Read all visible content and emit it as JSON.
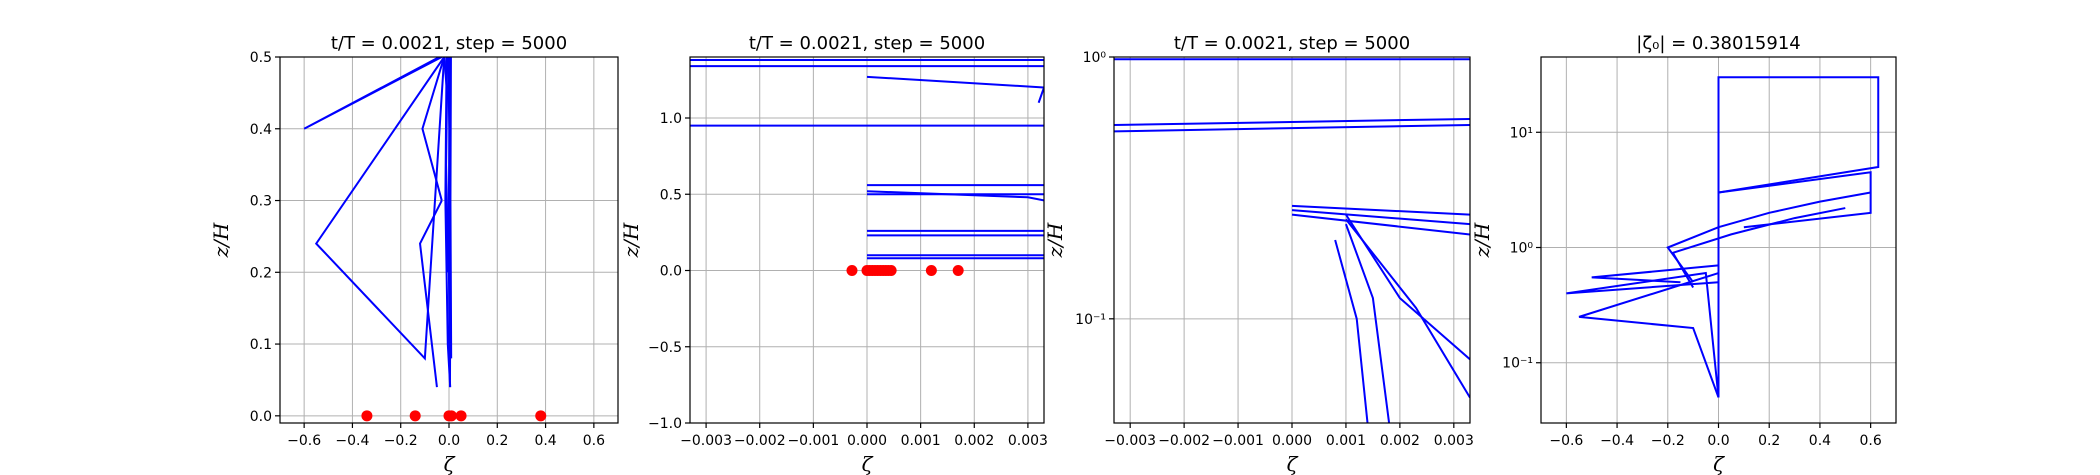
{
  "chart_data": [
    {
      "type": "line",
      "title": "t/T = 0.0021, step = 5000",
      "xlabel": "ζ",
      "ylabel": "z/H",
      "xlim": [
        -0.7,
        0.7
      ],
      "ylim": [
        -0.01,
        0.5
      ],
      "xscale": "linear",
      "yscale": "linear",
      "xticks": [
        -0.6,
        -0.4,
        -0.2,
        0.0,
        0.2,
        0.4,
        0.6
      ],
      "xtick_labels": [
        "−0.6",
        "−0.4",
        "−0.2",
        "0.0",
        "0.2",
        "0.4",
        "0.6"
      ],
      "yticks": [
        0.0,
        0.1,
        0.2,
        0.3,
        0.4,
        0.5
      ],
      "ytick_labels": [
        "0.0",
        "0.1",
        "0.2",
        "0.3",
        "0.4",
        "0.5"
      ],
      "grid": true,
      "series": [
        {
          "x": [
            -0.04,
            -0.6,
            -0.03
          ],
          "y": [
            0.5,
            0.4,
            0.5
          ]
        },
        {
          "x": [
            -0.02,
            -0.55,
            -0.1,
            -0.02
          ],
          "y": [
            0.5,
            0.24,
            0.08,
            0.5
          ]
        },
        {
          "x": [
            -0.02,
            -0.11,
            -0.03
          ],
          "y": [
            0.5,
            0.4,
            0.3
          ]
        },
        {
          "x": [
            -0.03,
            -0.12,
            -0.05
          ],
          "y": [
            0.3,
            0.24,
            0.04
          ]
        },
        {
          "x": [
            -0.01,
            -0.015,
            -0.005,
            0.005
          ],
          "y": [
            0.5,
            0.3,
            0.1,
            0.04
          ]
        },
        {
          "x": [
            0.0,
            0.002,
            0.001,
            0.004
          ],
          "y": [
            0.5,
            0.3,
            0.15,
            0.04
          ]
        },
        {
          "x": [
            0.005,
            0.003,
            0.006,
            0.004
          ],
          "y": [
            0.5,
            0.35,
            0.2,
            0.05
          ]
        },
        {
          "x": [
            -0.005,
            0.002,
            -0.002,
            0.003
          ],
          "y": [
            0.5,
            0.4,
            0.25,
            0.1
          ]
        },
        {
          "x": [
            0.008,
            0.006,
            0.009
          ],
          "y": [
            0.5,
            0.3,
            0.08
          ]
        },
        {
          "x": [
            -0.02,
            -0.008,
            -0.012,
            -0.003
          ],
          "y": [
            0.5,
            0.45,
            0.35,
            0.2
          ]
        }
      ],
      "points": {
        "x": [
          -0.34,
          -0.14,
          0.0,
          0.01,
          0.05,
          0.38
        ],
        "y": [
          0.0,
          0.0,
          0.0,
          0.0,
          0.0,
          0.0
        ]
      }
    },
    {
      "type": "line",
      "title": "t/T = 0.0021, step = 5000",
      "xlabel": "ζ",
      "ylabel": "z/H",
      "xlim": [
        -0.0033,
        0.0033
      ],
      "ylim": [
        -1.0,
        1.4
      ],
      "xscale": "linear",
      "yscale": "linear",
      "xticks": [
        -0.003,
        -0.002,
        -0.001,
        0.0,
        0.001,
        0.002,
        0.003
      ],
      "xtick_labels": [
        "−0.003",
        "−0.002",
        "−0.001",
        "0.000",
        "0.001",
        "0.002",
        "0.003"
      ],
      "yticks": [
        -1.0,
        -0.5,
        0.0,
        0.5,
        1.0
      ],
      "ytick_labels": [
        "−1.0",
        "−0.5",
        "0.0",
        "0.5",
        "1.0"
      ],
      "grid": true,
      "series": [
        {
          "x": [
            -0.0033,
            0.0033
          ],
          "y": [
            1.38,
            1.38
          ]
        },
        {
          "x": [
            -0.0033,
            0.0033
          ],
          "y": [
            1.34,
            1.34
          ]
        },
        {
          "x": [
            -0.0033,
            0.0033
          ],
          "y": [
            0.95,
            0.95
          ]
        },
        {
          "x": [
            0.0,
            0.0033
          ],
          "y": [
            0.56,
            0.56
          ]
        },
        {
          "x": [
            0.0,
            0.0033
          ],
          "y": [
            0.5,
            0.5
          ]
        },
        {
          "x": [
            0.0,
            0.0033
          ],
          "y": [
            0.26,
            0.26
          ]
        },
        {
          "x": [
            0.0,
            0.0033
          ],
          "y": [
            0.23,
            0.23
          ]
        },
        {
          "x": [
            0.0,
            0.0033
          ],
          "y": [
            0.1,
            0.1
          ]
        },
        {
          "x": [
            0.0,
            0.0033
          ],
          "y": [
            0.08,
            0.08
          ]
        },
        {
          "x": [
            0.0,
            0.0033,
            0.0032
          ],
          "y": [
            1.27,
            1.2,
            1.1
          ]
        },
        {
          "x": [
            0.0,
            0.003,
            0.0033
          ],
          "y": [
            0.52,
            0.48,
            0.46
          ]
        }
      ],
      "points": {
        "x": [
          -0.00028,
          0.0,
          5e-05,
          0.0001,
          0.00015,
          0.0002,
          0.00025,
          0.0003,
          0.00035,
          0.0004,
          0.00045,
          0.0012,
          0.0017
        ],
        "y": [
          0,
          0,
          0,
          0,
          0,
          0,
          0,
          0,
          0,
          0,
          0,
          0,
          0
        ]
      }
    },
    {
      "type": "line",
      "title": "t/T = 0.0021, step = 5000",
      "xlabel": "ζ",
      "ylabel": "z/H",
      "xlim": [
        -0.0033,
        0.0033
      ],
      "ylim": [
        0.04,
        1.0
      ],
      "xscale": "linear",
      "yscale": "log",
      "xticks": [
        -0.003,
        -0.002,
        -0.001,
        0.0,
        0.001,
        0.002,
        0.003
      ],
      "xtick_labels": [
        "−0.003",
        "−0.002",
        "−0.001",
        "0.000",
        "0.001",
        "0.002",
        "0.003"
      ],
      "yticks": [
        0.1,
        1.0
      ],
      "ytick_labels": [
        "10⁻¹",
        "10⁰"
      ],
      "grid": true,
      "series": [
        {
          "x": [
            -0.0033,
            0.0033
          ],
          "y": [
            0.98,
            0.98
          ]
        },
        {
          "x": [
            -0.0033,
            0.0033
          ],
          "y": [
            0.55,
            0.58
          ]
        },
        {
          "x": [
            -0.0033,
            0.0033
          ],
          "y": [
            0.52,
            0.55
          ]
        },
        {
          "x": [
            0.0,
            0.0033
          ],
          "y": [
            0.27,
            0.25
          ]
        },
        {
          "x": [
            0.0,
            0.0033
          ],
          "y": [
            0.26,
            0.23
          ]
        },
        {
          "x": [
            0.0,
            0.0033
          ],
          "y": [
            0.25,
            0.21
          ]
        },
        {
          "x": [
            0.001,
            0.002,
            0.0033
          ],
          "y": [
            0.25,
            0.12,
            0.07
          ]
        },
        {
          "x": [
            0.001,
            0.0023,
            0.0033
          ],
          "y": [
            0.24,
            0.11,
            0.05
          ]
        },
        {
          "x": [
            0.001,
            0.0015,
            0.0018
          ],
          "y": [
            0.23,
            0.12,
            0.04
          ]
        },
        {
          "x": [
            0.0008,
            0.0012,
            0.0014
          ],
          "y": [
            0.2,
            0.1,
            0.04
          ]
        }
      ]
    },
    {
      "type": "line",
      "title": "|ζ₀| = 0.38015914",
      "xlabel": "ζ",
      "ylabel": "z/H",
      "xlim": [
        -0.7,
        0.7
      ],
      "ylim": [
        0.03,
        45.0
      ],
      "xscale": "linear",
      "yscale": "log",
      "xticks": [
        -0.6,
        -0.4,
        -0.2,
        0.0,
        0.2,
        0.4,
        0.6
      ],
      "xtick_labels": [
        "−0.6",
        "−0.4",
        "−0.2",
        "0.0",
        "0.2",
        "0.4",
        "0.6"
      ],
      "yticks": [
        0.1,
        1.0,
        10.0
      ],
      "ytick_labels": [
        "10⁻¹",
        "10⁰",
        "10¹"
      ],
      "grid": true,
      "series": [
        {
          "x": [
            0.0,
            0.0,
            0.63,
            0.63,
            0.0
          ],
          "y": [
            0.05,
            30.0,
            30.0,
            5.0,
            3.0
          ]
        },
        {
          "x": [
            0.0,
            0.6,
            0.6,
            0.1
          ],
          "y": [
            3.0,
            4.5,
            2.0,
            1.5
          ]
        },
        {
          "x": [
            0.0,
            -0.6,
            -0.05,
            0.0
          ],
          "y": [
            0.5,
            0.4,
            0.6,
            0.05
          ]
        },
        {
          "x": [
            0.0,
            -0.55,
            -0.1,
            0.0
          ],
          "y": [
            0.6,
            0.25,
            0.2,
            0.05
          ]
        },
        {
          "x": [
            0.0,
            -0.5,
            -0.15
          ],
          "y": [
            0.7,
            0.55,
            0.5
          ]
        },
        {
          "x": [
            -0.1,
            -0.2,
            0.0,
            0.2,
            0.4,
            0.6
          ],
          "y": [
            0.5,
            1.0,
            1.5,
            2.0,
            2.5,
            3.0
          ]
        },
        {
          "x": [
            -0.1,
            -0.18,
            0.05,
            0.3,
            0.5
          ],
          "y": [
            0.45,
            0.9,
            1.3,
            1.8,
            2.2
          ]
        }
      ]
    }
  ]
}
